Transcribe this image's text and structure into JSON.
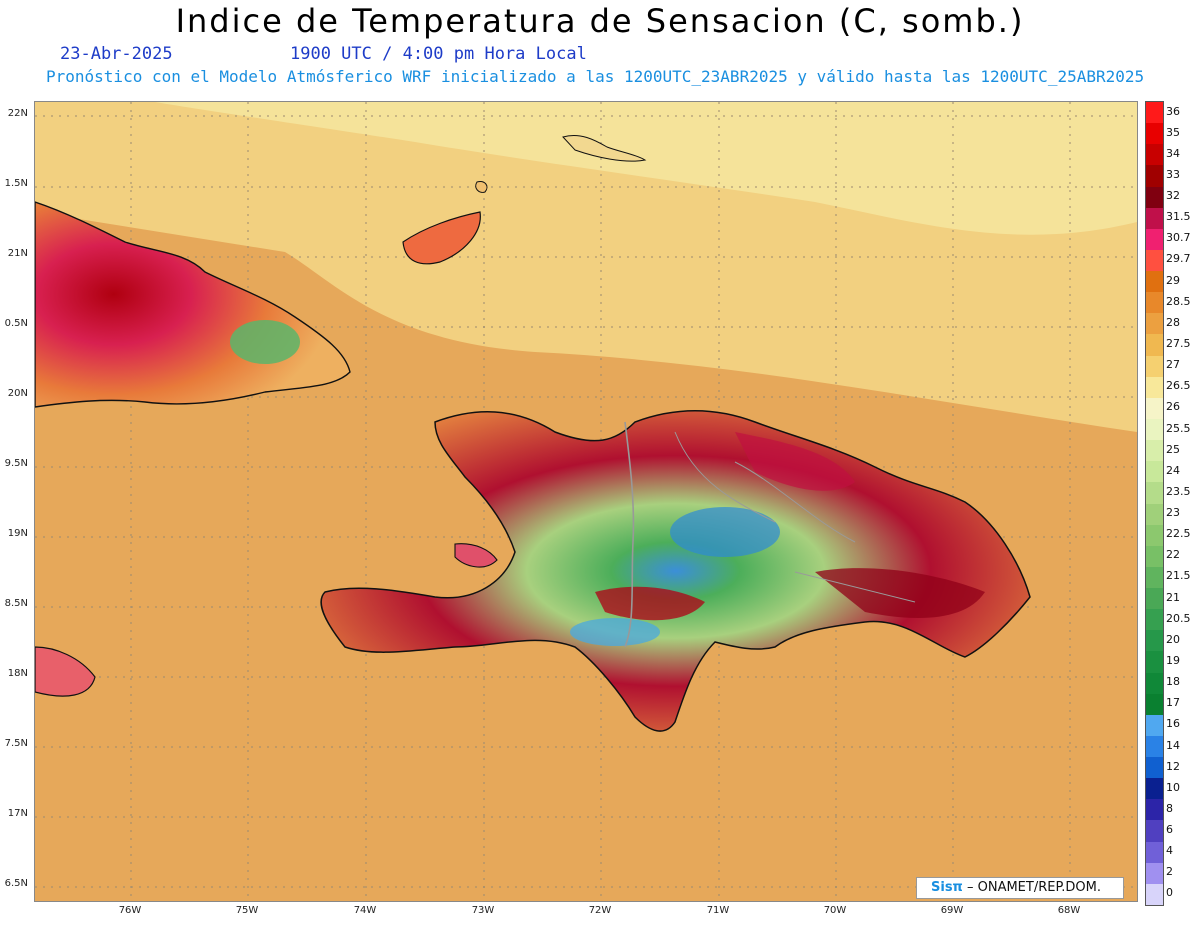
{
  "title": "Indice de Temperatura de Sensacion (C, somb.)",
  "date": "23-Abr-2025",
  "time": "1900 UTC / 4:00 pm Hora Local",
  "forecast_note": "Pronóstico con el Modelo Atmósferico WRF inicializado a las 1200UTC_23ABR2025 y válido hasta las  1200UTC_25ABR2025",
  "credit": {
    "logo": "Sisπ",
    "text": " – ONAMET/REP.DOM."
  },
  "map": {
    "lat_labels": [
      "22N",
      "1.5N",
      "21N",
      "0.5N",
      "20N",
      "9.5N",
      "19N",
      "8.5N",
      "18N",
      "7.5N",
      "17N",
      "6.5N"
    ],
    "lon_labels": [
      "76W",
      "75W",
      "74W",
      "73W",
      "72W",
      "71W",
      "70W",
      "69W",
      "68W"
    ],
    "ocean_color": "#e9b35a",
    "north_ocean_color": "#f5df8c",
    "island_fill": "#e07a3a"
  },
  "colorbar": [
    {
      "label": "36",
      "color": "#ff1a1a"
    },
    {
      "label": "35",
      "color": "#e80000"
    },
    {
      "label": "34",
      "color": "#c80000"
    },
    {
      "label": "33",
      "color": "#a00000"
    },
    {
      "label": "32",
      "color": "#800010"
    },
    {
      "label": "31.5",
      "color": "#c0104a"
    },
    {
      "label": "30.7",
      "color": "#f02070"
    },
    {
      "label": "29.7",
      "color": "#ff5040"
    },
    {
      "label": "29",
      "color": "#e07010"
    },
    {
      "label": "28.5",
      "color": "#e8882a"
    },
    {
      "label": "28",
      "color": "#eca040"
    },
    {
      "label": "27.5",
      "color": "#f0b850"
    },
    {
      "label": "27",
      "color": "#f5d070"
    },
    {
      "label": "26.5",
      "color": "#f8e89a"
    },
    {
      "label": "26",
      "color": "#f6f4c8"
    },
    {
      "label": "25.5",
      "color": "#eaf4c0"
    },
    {
      "label": "25",
      "color": "#d8eeaa"
    },
    {
      "label": "24",
      "color": "#c8e89a"
    },
    {
      "label": "23.5",
      "color": "#b4dc8a"
    },
    {
      "label": "23",
      "color": "#a0d07a"
    },
    {
      "label": "22.5",
      "color": "#8cc86e"
    },
    {
      "label": "22",
      "color": "#78c066"
    },
    {
      "label": "21.5",
      "color": "#60b45e"
    },
    {
      "label": "21",
      "color": "#4aa856"
    },
    {
      "label": "20.5",
      "color": "#36a050"
    },
    {
      "label": "20",
      "color": "#26984a"
    },
    {
      "label": "19",
      "color": "#1a9040"
    },
    {
      "label": "18",
      "color": "#108838"
    },
    {
      "label": "17",
      "color": "#0a8030"
    },
    {
      "label": "16",
      "color": "#50a8f0"
    },
    {
      "label": "14",
      "color": "#2a82e6"
    },
    {
      "label": "12",
      "color": "#1060d0"
    },
    {
      "label": "10",
      "color": "#0a2090"
    },
    {
      "label": "8",
      "color": "#2c24a8"
    },
    {
      "label": "6",
      "color": "#5040c0"
    },
    {
      "label": "4",
      "color": "#7060d8"
    },
    {
      "label": "2",
      "color": "#a090f0"
    },
    {
      "label": "0",
      "color": "#d8d4fa"
    }
  ]
}
